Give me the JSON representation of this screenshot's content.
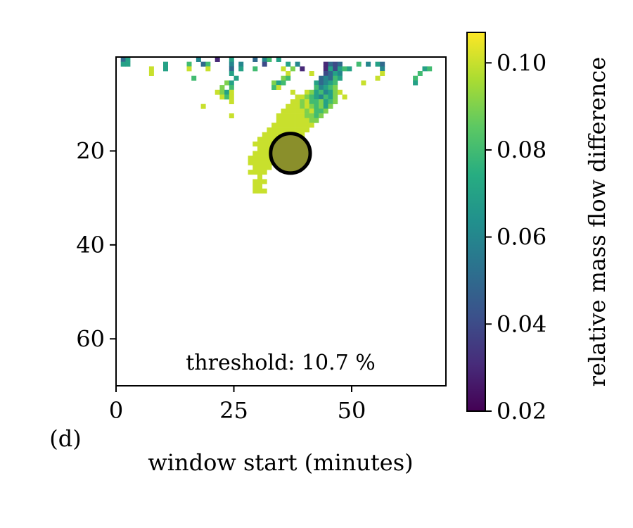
{
  "panel_label": "(d)",
  "chart_data": {
    "type": "heatmap",
    "xlabel": "window start (minutes)",
    "xlim": [
      0,
      70
    ],
    "ylim": [
      0,
      70
    ],
    "y_inverted": true,
    "x_ticks": [
      {
        "value": 0,
        "label": "0"
      },
      {
        "value": 25,
        "label": "25"
      },
      {
        "value": 50,
        "label": "50"
      }
    ],
    "y_ticks": [
      {
        "value": 20,
        "label": "20"
      },
      {
        "value": 40,
        "label": "40"
      },
      {
        "value": 60,
        "label": "60"
      }
    ],
    "annotation": "threshold: 10.7 %",
    "colormap": "viridis",
    "colorbar": {
      "label": "relative mass flow difference",
      "range": [
        0.02,
        0.107
      ],
      "ticks": [
        {
          "value": 0.02,
          "label": "0.02"
        },
        {
          "value": 0.04,
          "label": "0.04"
        },
        {
          "value": 0.06,
          "label": "0.06"
        },
        {
          "value": 0.08,
          "label": "0.08"
        },
        {
          "value": 0.1,
          "label": "0.10"
        }
      ]
    },
    "marker": {
      "x": 37,
      "y": 20.5,
      "radius": 4.2,
      "fill": "#8a8f2b",
      "stroke": "#000000"
    },
    "cells": [
      [
        1,
        0,
        0.05
      ],
      [
        2,
        0,
        0.07
      ],
      [
        17,
        0,
        0.06
      ],
      [
        21,
        0,
        0.03
      ],
      [
        24,
        0,
        0.07
      ],
      [
        29,
        0,
        0.05
      ],
      [
        31,
        0,
        0.06
      ],
      [
        32,
        0,
        0.08
      ],
      [
        34,
        0,
        0.07
      ],
      [
        1,
        1,
        0.07
      ],
      [
        2,
        1,
        0.07
      ],
      [
        10,
        1,
        0.07
      ],
      [
        15,
        1,
        0.08
      ],
      [
        18,
        1,
        0.05
      ],
      [
        19,
        1,
        0.08
      ],
      [
        24,
        1,
        0.06
      ],
      [
        26,
        1,
        0.06
      ],
      [
        31,
        1,
        0.04
      ],
      [
        36,
        1,
        0.07
      ],
      [
        38,
        1,
        0.06
      ],
      [
        44,
        1,
        0.03
      ],
      [
        45,
        1,
        0.05
      ],
      [
        46,
        1,
        0.04
      ],
      [
        47,
        1,
        0.05
      ],
      [
        51,
        1,
        0.08
      ],
      [
        53,
        1,
        0.06
      ],
      [
        55,
        1,
        0.07
      ],
      [
        56,
        1,
        0.05
      ],
      [
        7,
        2,
        0.1
      ],
      [
        10,
        2,
        0.07
      ],
      [
        15,
        2,
        0.1
      ],
      [
        19,
        2,
        0.1
      ],
      [
        24,
        2,
        0.05
      ],
      [
        26,
        2,
        0.07
      ],
      [
        29,
        2,
        0.08
      ],
      [
        35,
        2,
        0.1
      ],
      [
        37,
        2,
        0.09
      ],
      [
        39,
        2,
        0.03
      ],
      [
        44,
        2,
        0.03
      ],
      [
        45,
        2,
        0.07
      ],
      [
        46,
        2,
        0.04
      ],
      [
        47,
        2,
        0.07
      ],
      [
        48,
        2,
        0.08
      ],
      [
        49,
        2,
        0.07
      ],
      [
        56,
        2,
        0.06
      ],
      [
        65,
        2,
        0.07
      ],
      [
        66,
        2,
        0.08
      ],
      [
        7,
        3,
        0.1
      ],
      [
        24,
        3,
        0.07
      ],
      [
        36,
        3,
        0.1
      ],
      [
        41,
        3,
        0.1
      ],
      [
        44,
        3,
        0.04
      ],
      [
        45,
        3,
        0.05
      ],
      [
        46,
        3,
        0.07
      ],
      [
        47,
        3,
        0.06
      ],
      [
        56,
        3,
        0.1
      ],
      [
        64,
        3,
        0.08
      ],
      [
        16,
        4,
        0.08
      ],
      [
        25,
        4,
        0.07
      ],
      [
        35,
        4,
        0.09
      ],
      [
        36,
        4,
        0.08
      ],
      [
        43,
        4,
        0.05
      ],
      [
        44,
        4,
        0.06
      ],
      [
        45,
        4,
        0.05
      ],
      [
        46,
        4,
        0.08
      ],
      [
        47,
        4,
        0.07
      ],
      [
        55,
        4,
        0.1
      ],
      [
        63,
        4,
        0.08
      ],
      [
        23,
        5,
        0.09
      ],
      [
        24,
        5,
        0.07
      ],
      [
        33,
        5,
        0.09
      ],
      [
        34,
        5,
        0.07
      ],
      [
        35,
        5,
        0.08
      ],
      [
        42,
        5,
        0.07
      ],
      [
        43,
        5,
        0.05
      ],
      [
        44,
        5,
        0.06
      ],
      [
        45,
        5,
        0.07
      ],
      [
        46,
        5,
        0.08
      ],
      [
        52,
        5,
        0.1
      ],
      [
        63,
        5,
        0.07
      ],
      [
        22,
        6,
        0.09
      ],
      [
        24,
        6,
        0.08
      ],
      [
        33,
        6,
        0.08
      ],
      [
        34,
        6,
        0.1
      ],
      [
        42,
        6,
        0.08
      ],
      [
        43,
        6,
        0.06
      ],
      [
        44,
        6,
        0.07
      ],
      [
        45,
        6,
        0.08
      ],
      [
        46,
        6,
        0.09
      ],
      [
        21,
        7,
        0.1
      ],
      [
        22,
        7,
        0.09
      ],
      [
        23,
        7,
        0.07
      ],
      [
        24,
        7,
        0.1
      ],
      [
        37,
        7,
        0.1
      ],
      [
        40,
        7,
        0.1
      ],
      [
        41,
        7,
        0.09
      ],
      [
        42,
        7,
        0.07
      ],
      [
        43,
        7,
        0.08
      ],
      [
        44,
        7,
        0.06
      ],
      [
        45,
        7,
        0.07
      ],
      [
        46,
        7,
        0.09
      ],
      [
        47,
        7,
        0.1
      ],
      [
        22,
        8,
        0.1
      ],
      [
        23,
        8,
        0.08
      ],
      [
        24,
        8,
        0.1
      ],
      [
        38,
        8,
        0.1
      ],
      [
        39,
        8,
        0.1
      ],
      [
        40,
        8,
        0.09
      ],
      [
        41,
        8,
        0.08
      ],
      [
        42,
        8,
        0.07
      ],
      [
        43,
        8,
        0.06
      ],
      [
        44,
        8,
        0.08
      ],
      [
        45,
        8,
        0.07
      ],
      [
        46,
        8,
        0.09
      ],
      [
        48,
        8,
        0.1
      ],
      [
        24,
        9,
        0.1
      ],
      [
        37,
        9,
        0.1
      ],
      [
        38,
        9,
        0.1
      ],
      [
        39,
        9,
        0.09
      ],
      [
        40,
        9,
        0.1
      ],
      [
        41,
        9,
        0.08
      ],
      [
        42,
        9,
        0.08
      ],
      [
        43,
        9,
        0.09
      ],
      [
        44,
        9,
        0.07
      ],
      [
        45,
        9,
        0.08
      ],
      [
        46,
        9,
        0.09
      ],
      [
        18,
        10,
        0.1
      ],
      [
        36,
        10,
        0.1
      ],
      [
        37,
        10,
        0.1
      ],
      [
        38,
        10,
        0.1
      ],
      [
        39,
        10,
        0.09
      ],
      [
        40,
        10,
        0.1
      ],
      [
        41,
        10,
        0.09
      ],
      [
        42,
        10,
        0.08
      ],
      [
        43,
        10,
        0.09
      ],
      [
        44,
        10,
        0.07
      ],
      [
        45,
        10,
        0.09
      ],
      [
        35,
        11,
        0.1
      ],
      [
        36,
        11,
        0.1
      ],
      [
        37,
        11,
        0.1
      ],
      [
        38,
        11,
        0.1
      ],
      [
        39,
        11,
        0.1
      ],
      [
        40,
        11,
        0.09
      ],
      [
        41,
        11,
        0.1
      ],
      [
        42,
        11,
        0.08
      ],
      [
        43,
        11,
        0.08
      ],
      [
        44,
        11,
        0.09
      ],
      [
        24,
        12,
        0.1
      ],
      [
        34,
        12,
        0.1
      ],
      [
        35,
        12,
        0.1
      ],
      [
        36,
        12,
        0.1
      ],
      [
        37,
        12,
        0.1
      ],
      [
        38,
        12,
        0.1
      ],
      [
        39,
        12,
        0.1
      ],
      [
        40,
        12,
        0.09
      ],
      [
        41,
        12,
        0.09
      ],
      [
        42,
        12,
        0.08
      ],
      [
        43,
        12,
        0.09
      ],
      [
        34,
        13,
        0.1
      ],
      [
        35,
        13,
        0.1
      ],
      [
        36,
        13,
        0.1
      ],
      [
        37,
        13,
        0.1
      ],
      [
        38,
        13,
        0.1
      ],
      [
        39,
        13,
        0.1
      ],
      [
        40,
        13,
        0.1
      ],
      [
        41,
        13,
        0.09
      ],
      [
        42,
        13,
        0.09
      ],
      [
        33,
        14,
        0.1
      ],
      [
        34,
        14,
        0.1
      ],
      [
        35,
        14,
        0.1
      ],
      [
        36,
        14,
        0.1
      ],
      [
        37,
        14,
        0.1
      ],
      [
        38,
        14,
        0.1
      ],
      [
        39,
        14,
        0.1
      ],
      [
        40,
        14,
        0.1
      ],
      [
        41,
        14,
        0.1
      ],
      [
        32,
        15,
        0.1
      ],
      [
        33,
        15,
        0.1
      ],
      [
        34,
        15,
        0.1
      ],
      [
        35,
        15,
        0.1
      ],
      [
        36,
        15,
        0.1
      ],
      [
        37,
        15,
        0.1
      ],
      [
        38,
        15,
        0.1
      ],
      [
        39,
        15,
        0.1
      ],
      [
        40,
        15,
        0.1
      ],
      [
        31,
        16,
        0.1
      ],
      [
        32,
        16,
        0.1
      ],
      [
        33,
        16,
        0.1
      ],
      [
        34,
        16,
        0.1
      ],
      [
        35,
        16,
        0.1
      ],
      [
        36,
        16,
        0.1
      ],
      [
        37,
        16,
        0.1
      ],
      [
        38,
        16,
        0.1
      ],
      [
        39,
        16,
        0.1
      ],
      [
        30,
        17,
        0.1
      ],
      [
        31,
        17,
        0.1
      ],
      [
        32,
        17,
        0.1
      ],
      [
        33,
        17,
        0.1
      ],
      [
        34,
        17,
        0.1
      ],
      [
        35,
        17,
        0.1
      ],
      [
        36,
        17,
        0.1
      ],
      [
        37,
        17,
        0.1
      ],
      [
        38,
        17,
        0.1
      ],
      [
        29,
        18,
        0.1
      ],
      [
        30,
        18,
        0.1
      ],
      [
        31,
        18,
        0.1
      ],
      [
        32,
        18,
        0.1
      ],
      [
        33,
        18,
        0.1
      ],
      [
        34,
        18,
        0.1
      ],
      [
        35,
        18,
        0.1
      ],
      [
        36,
        18,
        0.1
      ],
      [
        37,
        18,
        0.1
      ],
      [
        30,
        19,
        0.1
      ],
      [
        31,
        19,
        0.1
      ],
      [
        32,
        19,
        0.1
      ],
      [
        33,
        19,
        0.1
      ],
      [
        34,
        19,
        0.1
      ],
      [
        35,
        19,
        0.1
      ],
      [
        36,
        19,
        0.1
      ],
      [
        29,
        20,
        0.1
      ],
      [
        30,
        20,
        0.1
      ],
      [
        31,
        20,
        0.1
      ],
      [
        32,
        20,
        0.1
      ],
      [
        33,
        20,
        0.1
      ],
      [
        34,
        20,
        0.1
      ],
      [
        35,
        20,
        0.1
      ],
      [
        28,
        21,
        0.1
      ],
      [
        29,
        21,
        0.1
      ],
      [
        30,
        21,
        0.1
      ],
      [
        31,
        21,
        0.1
      ],
      [
        32,
        21,
        0.1
      ],
      [
        33,
        21,
        0.1
      ],
      [
        34,
        21,
        0.1
      ],
      [
        28,
        22,
        0.1
      ],
      [
        29,
        22,
        0.1
      ],
      [
        30,
        22,
        0.1
      ],
      [
        31,
        22,
        0.1
      ],
      [
        32,
        22,
        0.1
      ],
      [
        33,
        22,
        0.1
      ],
      [
        29,
        23,
        0.1
      ],
      [
        30,
        23,
        0.1
      ],
      [
        31,
        23,
        0.1
      ],
      [
        32,
        23,
        0.1
      ],
      [
        28,
        24,
        0.1
      ],
      [
        29,
        24,
        0.1
      ],
      [
        30,
        24,
        0.1
      ],
      [
        31,
        24,
        0.1
      ],
      [
        30,
        25,
        0.1
      ],
      [
        29,
        26,
        0.1
      ],
      [
        30,
        26,
        0.1
      ],
      [
        31,
        26,
        0.1
      ],
      [
        29,
        27,
        0.1
      ],
      [
        30,
        27,
        0.1
      ],
      [
        29,
        28,
        0.1
      ],
      [
        30,
        28,
        0.1
      ],
      [
        31,
        28,
        0.1
      ]
    ]
  }
}
